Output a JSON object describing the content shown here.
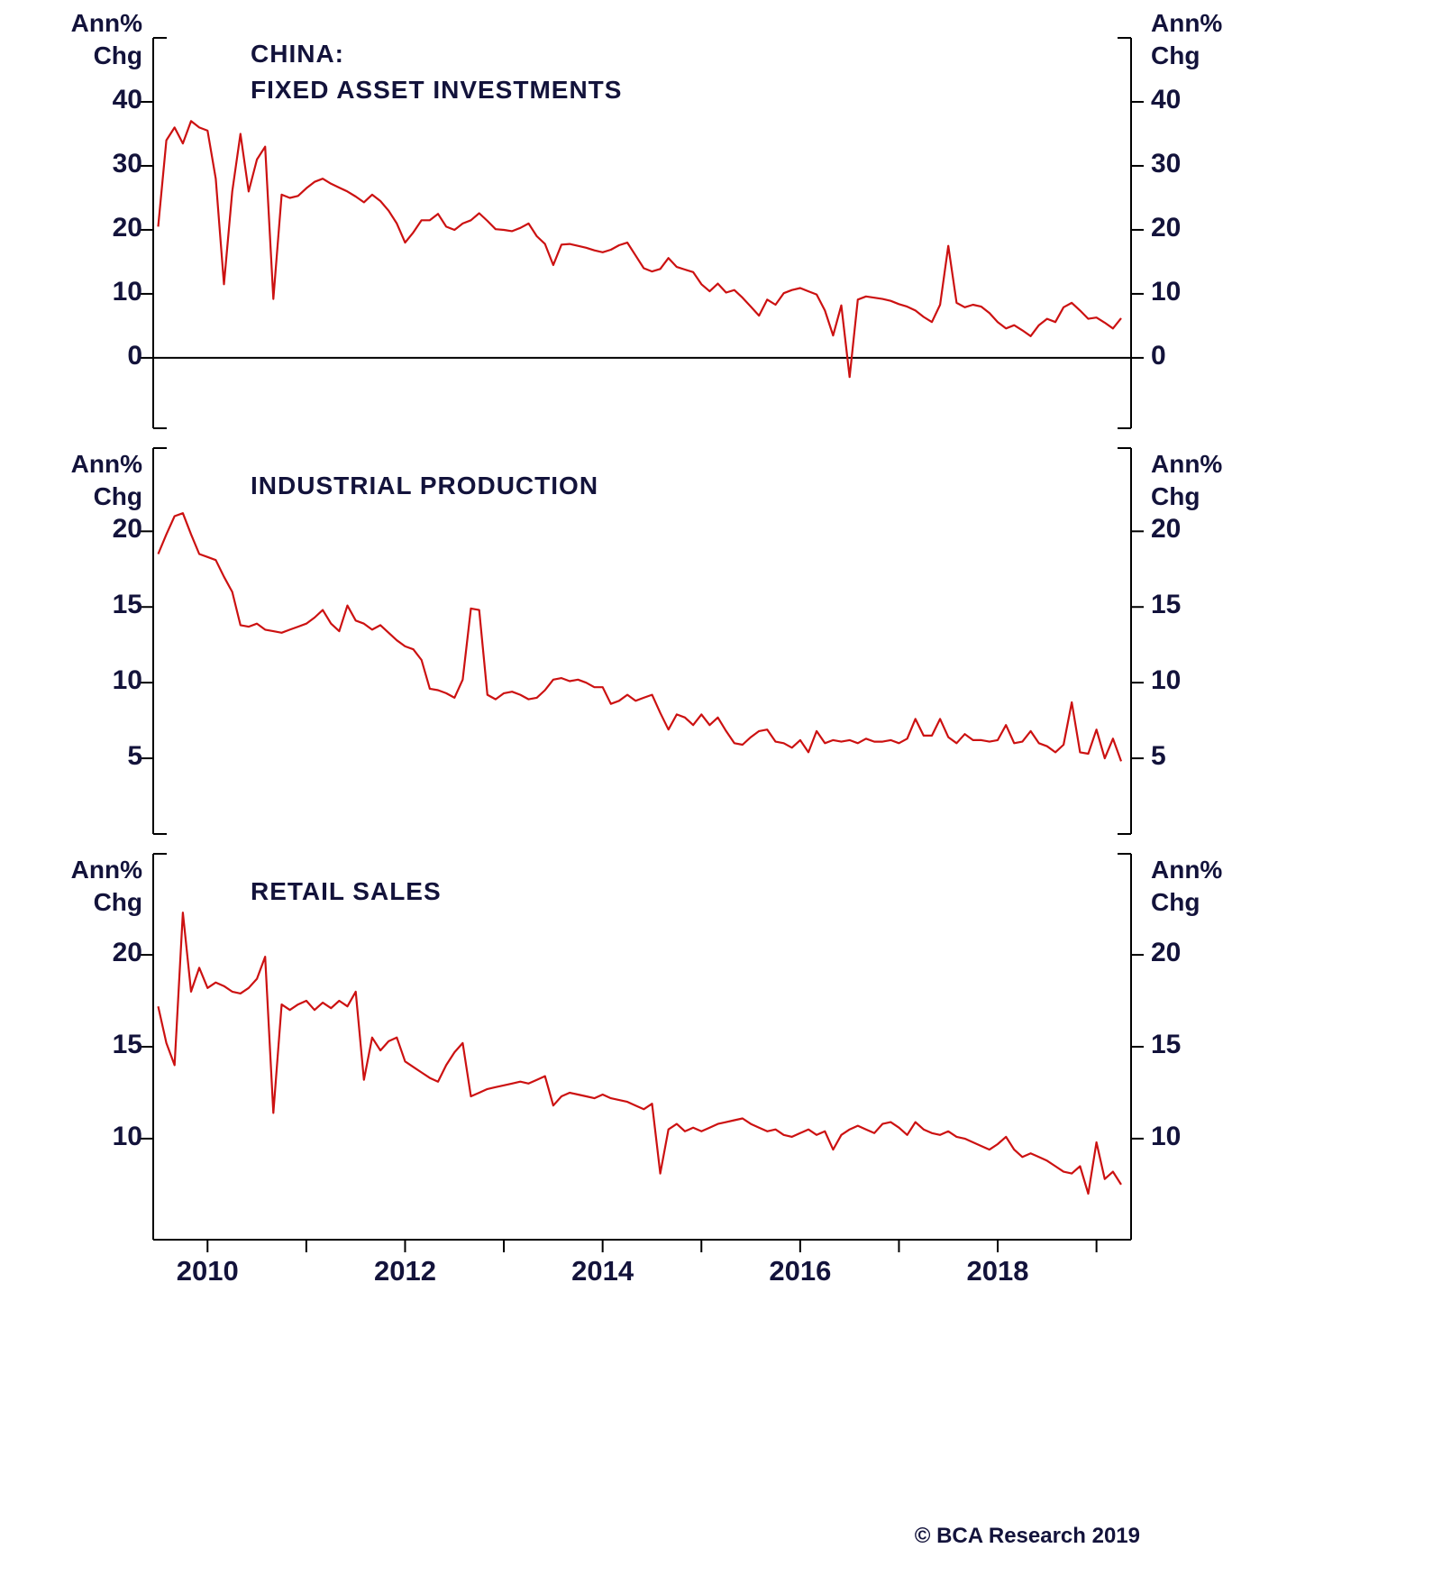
{
  "page": {
    "copyright": "© BCA Research 2019"
  },
  "colors": {
    "line": "#cc1111",
    "axis": "#000000",
    "text": "#13133b",
    "background": "#ffffff"
  },
  "axis_unit": {
    "line1": "Ann%",
    "line2": "Chg"
  },
  "x_axis": {
    "xlim": [
      2009.45,
      2019.35
    ],
    "tick_values": [
      2010,
      2012,
      2014,
      2016,
      2018
    ],
    "tick_labels": [
      "2010",
      "2012",
      "2014",
      "2016",
      "2018"
    ],
    "all_tick_values": [
      2010,
      2011,
      2012,
      2013,
      2014,
      2015,
      2016,
      2017,
      2018,
      2019
    ]
  },
  "chart_data": [
    {
      "type": "line",
      "series_name": "fixed-asset-investments-line",
      "title_lines": [
        "CHINA:",
        "FIXED ASSET INVESTMENTS"
      ],
      "ylabel": "Ann% Chg",
      "x_start": 2009.5,
      "x_frequency": "monthly",
      "x_end": 2019.25,
      "ylim": [
        -11,
        50
      ],
      "yticks": [
        0,
        10,
        20,
        30,
        40
      ],
      "zero_line": true,
      "values": [
        20.5,
        34,
        36,
        33.5,
        37,
        36,
        35.5,
        28,
        11.5,
        26,
        35,
        26,
        31,
        33,
        9.2,
        25.5,
        25,
        25.3,
        26.5,
        27.5,
        28,
        27.2,
        26.6,
        26,
        25.2,
        24.3,
        25.5,
        24.5,
        23,
        21,
        18,
        19.6,
        21.5,
        21.5,
        22.5,
        20.5,
        20,
        21,
        21.5,
        22.6,
        21.4,
        20.1,
        20,
        19.8,
        20.3,
        21,
        19,
        17.8,
        14.5,
        17.7,
        17.8,
        17.5,
        17.2,
        16.8,
        16.5,
        16.9,
        17.6,
        18,
        16,
        14,
        13.5,
        13.9,
        15.6,
        14.2,
        13.8,
        13.4,
        11.5,
        10.4,
        11.6,
        10.2,
        10.6,
        9.4,
        8,
        6.6,
        9.1,
        8.3,
        10.1,
        10.6,
        10.9,
        10.4,
        9.9,
        7.4,
        3.5,
        8.2,
        -3,
        9.1,
        9.6,
        9.4,
        9.2,
        8.9,
        8.4,
        8,
        7.4,
        6.4,
        5.6,
        8.3,
        17.5,
        8.6,
        7.9,
        8.3,
        8,
        7,
        5.6,
        4.6,
        5.1,
        4.3,
        3.4,
        5.1,
        6.1,
        5.6,
        7.9,
        8.6,
        7.4,
        6.1,
        6.3,
        5.5,
        4.6,
        6.2
      ]
    },
    {
      "type": "line",
      "series_name": "industrial-production-line",
      "title_lines": [
        "INDUSTRIAL PRODUCTION"
      ],
      "ylabel": "Ann% Chg",
      "x_start": 2009.5,
      "x_frequency": "monthly",
      "x_end": 2019.25,
      "ylim": [
        0,
        25.5
      ],
      "yticks": [
        5,
        10,
        15,
        20
      ],
      "zero_line": false,
      "values": [
        18.5,
        19.8,
        21,
        21.2,
        19.8,
        18.5,
        18.3,
        18.1,
        17,
        16,
        13.8,
        13.7,
        13.9,
        13.5,
        13.4,
        13.3,
        13.5,
        13.7,
        13.9,
        14.3,
        14.8,
        13.9,
        13.4,
        15.1,
        14.1,
        13.9,
        13.5,
        13.8,
        13.3,
        12.8,
        12.4,
        12.2,
        11.5,
        9.6,
        9.5,
        9.3,
        9.0,
        10.2,
        14.9,
        14.8,
        9.2,
        8.9,
        9.3,
        9.4,
        9.2,
        8.9,
        9.0,
        9.5,
        10.2,
        10.3,
        10.1,
        10.2,
        10.0,
        9.7,
        9.7,
        8.6,
        8.8,
        9.2,
        8.8,
        9.0,
        9.2,
        8.0,
        6.9,
        7.9,
        7.7,
        7.2,
        7.9,
        7.2,
        7.7,
        6.8,
        6.0,
        5.9,
        6.4,
        6.8,
        6.9,
        6.1,
        6.0,
        5.7,
        6.2,
        5.4,
        6.8,
        6.0,
        6.2,
        6.1,
        6.2,
        6.0,
        6.3,
        6.1,
        6.1,
        6.2,
        6.0,
        6.3,
        7.6,
        6.5,
        6.5,
        7.6,
        6.4,
        6.0,
        6.6,
        6.2,
        6.2,
        6.1,
        6.2,
        7.2,
        6.0,
        6.1,
        6.8,
        6.0,
        5.8,
        5.4,
        5.9,
        8.7,
        5.4,
        5.3,
        6.9,
        5.0,
        6.3,
        4.8
      ]
    },
    {
      "type": "line",
      "series_name": "retail-sales-line",
      "title_lines": [
        "RETAIL SALES"
      ],
      "ylabel": "Ann% Chg",
      "x_start": 2009.5,
      "x_frequency": "monthly",
      "x_end": 2019.25,
      "ylim": [
        4.5,
        25.5
      ],
      "yticks": [
        10,
        15,
        20
      ],
      "zero_line": false,
      "values": [
        17.2,
        15.2,
        14.0,
        22.3,
        18.0,
        19.3,
        18.2,
        18.5,
        18.3,
        18.0,
        17.9,
        18.2,
        18.7,
        19.9,
        11.4,
        17.3,
        17.0,
        17.3,
        17.5,
        17.0,
        17.4,
        17.1,
        17.5,
        17.2,
        18.0,
        13.2,
        15.5,
        14.8,
        15.3,
        15.5,
        14.2,
        13.9,
        13.6,
        13.3,
        13.1,
        14.0,
        14.7,
        15.2,
        12.3,
        12.5,
        12.7,
        12.8,
        12.9,
        13.0,
        13.1,
        13.0,
        13.2,
        13.4,
        11.8,
        12.3,
        12.5,
        12.4,
        12.3,
        12.2,
        12.4,
        12.2,
        12.1,
        12.0,
        11.8,
        11.6,
        11.9,
        8.1,
        10.5,
        10.8,
        10.4,
        10.6,
        10.4,
        10.6,
        10.8,
        10.9,
        11.0,
        11.1,
        10.8,
        10.6,
        10.4,
        10.5,
        10.2,
        10.1,
        10.3,
        10.5,
        10.2,
        10.4,
        9.4,
        10.2,
        10.5,
        10.7,
        10.5,
        10.3,
        10.8,
        10.9,
        10.6,
        10.2,
        10.9,
        10.5,
        10.3,
        10.2,
        10.4,
        10.1,
        10.0,
        9.8,
        9.6,
        9.4,
        9.7,
        10.1,
        9.4,
        9.0,
        9.2,
        9.0,
        8.8,
        8.5,
        8.2,
        8.1,
        8.5,
        7.0,
        9.8,
        7.8,
        8.2,
        7.5
      ]
    }
  ]
}
